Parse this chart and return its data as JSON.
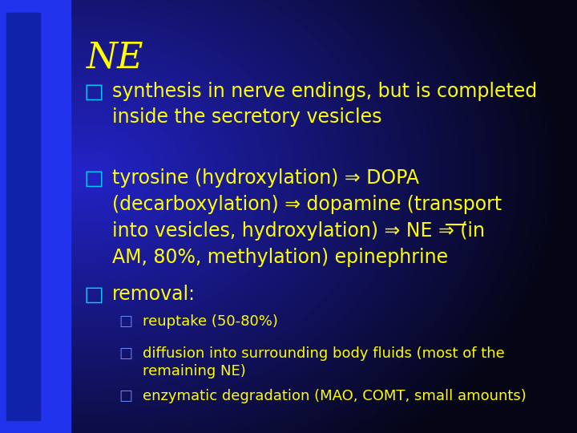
{
  "title": "NE",
  "title_color": "#FFFF00",
  "title_fontsize": 32,
  "text_color": "#FFFF00",
  "bullet_color": "#00CCFF",
  "bullet1": "synthesis in nerve endings, but is completed\ninside the secretory vesicles",
  "bullet2_line1": "tyrosine (hydroxylation) ⇒ DOPA",
  "bullet2_line2": "(decarboxylation) ⇒ dopamine (transport",
  "bullet2_line3_pre": "into vesicles, hydroxylation) ⇒ ",
  "bullet2_line3_ne": "NE",
  "bullet2_line3_post": " ⇒ (in",
  "bullet2_line4": "AM, 80%, methylation) epinephrine",
  "bullet3": "removal:",
  "sub_bullets": [
    "reuptake (50-80%)",
    "diffusion into surrounding body fluids (most of the\nremaining NE)",
    "enzymatic degradation (MAO, COMT, small amounts)"
  ],
  "sub_bullet_color": "#6688FF",
  "sub_text_color": "#FFFF00",
  "main_fontsize": 17,
  "sub_fontsize": 13,
  "left_bar_color": "#2233DD",
  "sq_color": "#1A1A99",
  "bg_main_color": "#1133BB",
  "bg_dark_color": "#000033"
}
